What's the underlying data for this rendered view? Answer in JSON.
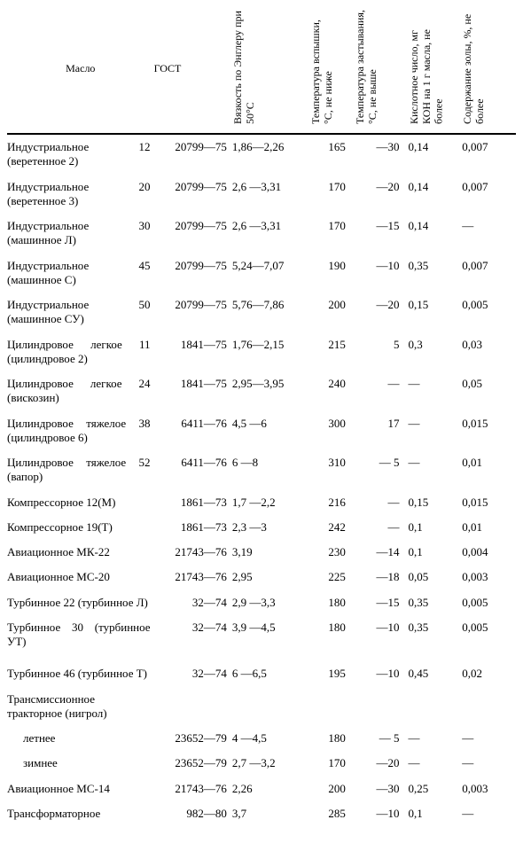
{
  "columns": {
    "name": "Масло",
    "gost": "ГОСТ",
    "viscosity": "Вязкость по Энглеру при 50°С",
    "flash": "Температура вспышки, °С, не ниже",
    "pour": "Температура застывания, °С, не выше",
    "acid": "Кислотное число, мг КОН на 1 г масла, не более",
    "ash": "Содержание золы, %, не более"
  },
  "rows": [
    {
      "name": "Индустриальное 12 (веретенное 2)",
      "gost": "20799—75",
      "vis": "1,86—2,26",
      "flash": "165",
      "pour": "—30",
      "acid": "0,14",
      "ash": "0,007"
    },
    {
      "name": "Индустриальное 20 (веретенное 3)",
      "gost": "20799—75",
      "vis": "2,6 —3,31",
      "flash": "170",
      "pour": "—20",
      "acid": "0,14",
      "ash": "0,007"
    },
    {
      "name": "Индустриальное 30 (машинное Л)",
      "gost": "20799—75",
      "vis": "2,6 —3,31",
      "flash": "170",
      "pour": "—15",
      "acid": "0,14",
      "ash": "—"
    },
    {
      "name": "Индустриальное 45 (машинное С)",
      "gost": "20799—75",
      "vis": "5,24—7,07",
      "flash": "190",
      "pour": "—10",
      "acid": "0,35",
      "ash": "0,007"
    },
    {
      "name": "Индустриальное 50 (машинное СУ)",
      "gost": "20799—75",
      "vis": "5,76—7,86",
      "flash": "200",
      "pour": "—20",
      "acid": "0,15",
      "ash": "0,005"
    },
    {
      "name": "Цилиндровое легкое 11 (цилиндровое 2)",
      "gost": "1841—75",
      "vis": "1,76—2,15",
      "flash": "215",
      "pour": "5",
      "acid": "0,3",
      "ash": "0,03"
    },
    {
      "name": "Цилиндровое легкое 24 (вискозин)",
      "gost": "1841—75",
      "vis": "2,95—3,95",
      "flash": "240",
      "pour": "—",
      "acid": "—",
      "ash": "0,05"
    },
    {
      "name": "Цилиндровое тяжелое 38 (цилиндровое 6)",
      "gost": "6411—76",
      "vis": "4,5 —6",
      "flash": "300",
      "pour": "17",
      "acid": "—",
      "ash": "0,015"
    },
    {
      "name": "Цилиндровое тяжелое 52 (вапор)",
      "gost": "6411—76",
      "vis": "6 —8",
      "flash": "310",
      "pour": "— 5",
      "acid": "—",
      "ash": "0,01"
    },
    {
      "name": "Компрессорное 12(М)",
      "gost": "1861—73",
      "vis": "1,7 —2,2",
      "flash": "216",
      "pour": "—",
      "acid": "0,15",
      "ash": "0,015"
    },
    {
      "name": "Компрессорное 19(Т)",
      "gost": "1861—73",
      "vis": "2,3 —3",
      "flash": "242",
      "pour": "—",
      "acid": "0,1",
      "ash": "0,01"
    },
    {
      "name": "Авиационное МК-22",
      "gost": "21743—76",
      "vis": "3,19",
      "flash": "230",
      "pour": "—14",
      "acid": "0,1",
      "ash": "0,004"
    },
    {
      "name": "Авиационное МС-20",
      "gost": "21743—76",
      "vis": "2,95",
      "flash": "225",
      "pour": "—18",
      "acid": "0,05",
      "ash": "0,003"
    },
    {
      "name": "Турбинное 22 (турбинное Л)",
      "gost": "32—74",
      "vis": "2,9 —3,3",
      "flash": "180",
      "pour": "—15",
      "acid": "0,35",
      "ash": "0,005"
    },
    {
      "name": "Турбинное 30 (турбинное УТ)",
      "gost": "32—74",
      "vis": "3,9 —4,5",
      "flash": "180",
      "pour": "—10",
      "acid": "0,35",
      "ash": "0,005"
    },
    {
      "name": "Турбинное 46 (турбинное Т)",
      "gost": "32—74",
      "vis": "6 —6,5",
      "flash": "195",
      "pour": "—10",
      "acid": "0,45",
      "ash": "0,02",
      "sep": true
    },
    {
      "name": "Трансмиссионное тракторное (нигрол)",
      "gost": "",
      "vis": "",
      "flash": "",
      "pour": "",
      "acid": "",
      "ash": ""
    },
    {
      "name": "летнее",
      "gost": "23652—79",
      "vis": "4 —4,5",
      "flash": "180",
      "pour": "— 5",
      "acid": "—",
      "ash": "—",
      "indent": true
    },
    {
      "name": "зимнее",
      "gost": "23652—79",
      "vis": "2,7 —3,2",
      "flash": "170",
      "pour": "—20",
      "acid": "—",
      "ash": "—",
      "indent": true
    },
    {
      "name": "Авиационное МС-14",
      "gost": "21743—76",
      "vis": "2,26",
      "flash": "200",
      "pour": "—30",
      "acid": "0,25",
      "ash": "0,003"
    },
    {
      "name": "Трансформаторное",
      "gost": "982—80",
      "vis": "3,7",
      "flash": "285",
      "pour": "—10",
      "acid": "0,1",
      "ash": "—"
    }
  ]
}
